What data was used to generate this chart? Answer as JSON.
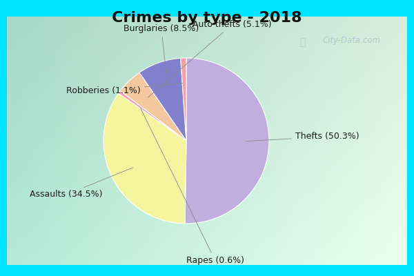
{
  "title": "Crimes by type - 2018",
  "labels": [
    "Thefts",
    "Assaults",
    "Rapes",
    "Auto thefts",
    "Burglaries",
    "Robberies"
  ],
  "percentages": [
    50.3,
    34.5,
    0.6,
    5.1,
    8.5,
    1.1
  ],
  "colors": [
    "#c0aede",
    "#f5f5a0",
    "#f0a0b0",
    "#f5c8a0",
    "#8080cc",
    "#f5a0a8"
  ],
  "label_texts": [
    "Thefts (50.3%)",
    "Assaults (34.5%)",
    "Rapes (0.6%)",
    "Auto thefts (5.1%)",
    "Burglaries (8.5%)",
    "Robberies (1.1%)"
  ],
  "border_color": "#00e5ff",
  "bg_left_color": "#a8d8c8",
  "bg_right_color": "#d8eedc",
  "title_fontsize": 16,
  "label_fontsize": 9,
  "startangle": 90,
  "figsize": [
    6.0,
    4.0
  ],
  "dpi": 100,
  "watermark": "City-Data.com"
}
